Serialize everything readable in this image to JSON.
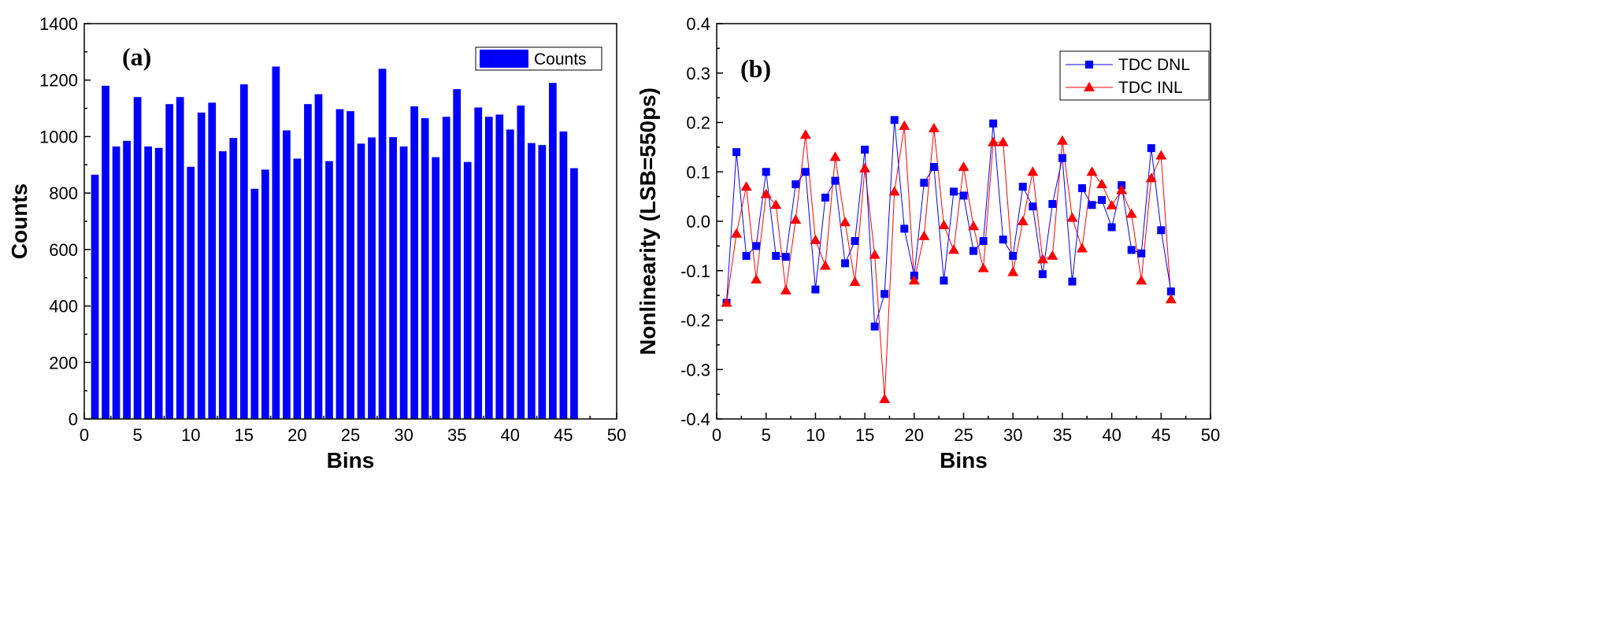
{
  "chart_data": [
    {
      "type": "bar",
      "panel_label": "(a)",
      "xlabel": "Bins",
      "ylabel": "Counts",
      "xlim": [
        0,
        50
      ],
      "ylim": [
        0,
        1400
      ],
      "xticks": [
        0,
        5,
        10,
        15,
        20,
        25,
        30,
        35,
        40,
        45,
        50
      ],
      "yticks": [
        0,
        200,
        400,
        600,
        800,
        1000,
        1200,
        1400
      ],
      "legend_position": "top-right",
      "grid": false,
      "series": [
        {
          "name": "Counts",
          "color": "#0000ff",
          "x": [
            1,
            2,
            3,
            4,
            5,
            6,
            7,
            8,
            9,
            10,
            11,
            12,
            13,
            14,
            15,
            16,
            17,
            18,
            19,
            20,
            21,
            22,
            23,
            24,
            25,
            26,
            27,
            28,
            29,
            30,
            31,
            32,
            33,
            34,
            35,
            36,
            37,
            38,
            39,
            40,
            41,
            42,
            43,
            44,
            45,
            46
          ],
          "values": [
            865,
            1180,
            965,
            985,
            1140,
            965,
            960,
            1115,
            1140,
            893,
            1085,
            1120,
            948,
            995,
            1185,
            815,
            883,
            1248,
            1022,
            922,
            1115,
            1150,
            913,
            1097,
            1090,
            975,
            997,
            1240,
            998,
            965,
            1107,
            1065,
            927,
            1070,
            1168,
            910,
            1103,
            1070,
            1078,
            1025,
            1110,
            977,
            970,
            1190,
            1018,
            888
          ]
        }
      ]
    },
    {
      "type": "line",
      "panel_label": "(b)",
      "xlabel": "Bins",
      "ylabel": "Nonlinearity (LSB=550ps)",
      "xlim": [
        0,
        50
      ],
      "ylim": [
        -0.4,
        0.4
      ],
      "xticks": [
        0,
        5,
        10,
        15,
        20,
        25,
        30,
        35,
        40,
        45,
        50
      ],
      "yticks": [
        -0.4,
        -0.3,
        -0.2,
        -0.1,
        0.0,
        0.1,
        0.2,
        0.3,
        0.4
      ],
      "legend_position": "top-right",
      "grid": false,
      "x": [
        1,
        2,
        3,
        4,
        5,
        6,
        7,
        8,
        9,
        10,
        11,
        12,
        13,
        14,
        15,
        16,
        17,
        18,
        19,
        20,
        21,
        22,
        23,
        24,
        25,
        26,
        27,
        28,
        29,
        30,
        31,
        32,
        33,
        34,
        35,
        36,
        37,
        38,
        39,
        40,
        41,
        42,
        43,
        44,
        45,
        46
      ],
      "series": [
        {
          "name": "TDC DNL",
          "color": "#0000ff",
          "marker": "square",
          "values": [
            -0.165,
            0.14,
            -0.07,
            -0.05,
            0.1,
            -0.07,
            -0.072,
            0.075,
            0.1,
            -0.138,
            0.048,
            0.082,
            -0.085,
            -0.04,
            0.145,
            -0.213,
            -0.147,
            0.205,
            -0.015,
            -0.11,
            0.078,
            0.11,
            -0.12,
            0.06,
            0.052,
            -0.06,
            -0.04,
            0.198,
            -0.037,
            -0.07,
            0.07,
            0.03,
            -0.107,
            0.035,
            0.128,
            -0.122,
            0.067,
            0.033,
            0.043,
            -0.012,
            0.073,
            -0.058,
            -0.065,
            0.148,
            -0.018,
            -0.142
          ]
        },
        {
          "name": "TDC INL",
          "color": "#ff0000",
          "marker": "triangle",
          "values": [
            -0.165,
            -0.025,
            0.07,
            -0.118,
            0.055,
            0.033,
            -0.14,
            0.003,
            0.175,
            -0.038,
            -0.09,
            0.13,
            -0.002,
            -0.123,
            0.107,
            -0.068,
            -0.36,
            0.06,
            0.193,
            -0.12,
            -0.03,
            0.188,
            -0.008,
            -0.058,
            0.11,
            -0.01,
            -0.095,
            0.16,
            0.16,
            -0.103,
            0.0,
            0.1,
            -0.077,
            -0.07,
            0.163,
            0.007,
            -0.055,
            0.1,
            0.075,
            0.032,
            0.063,
            0.015,
            -0.12,
            0.087,
            0.133,
            -0.158
          ]
        }
      ]
    }
  ]
}
